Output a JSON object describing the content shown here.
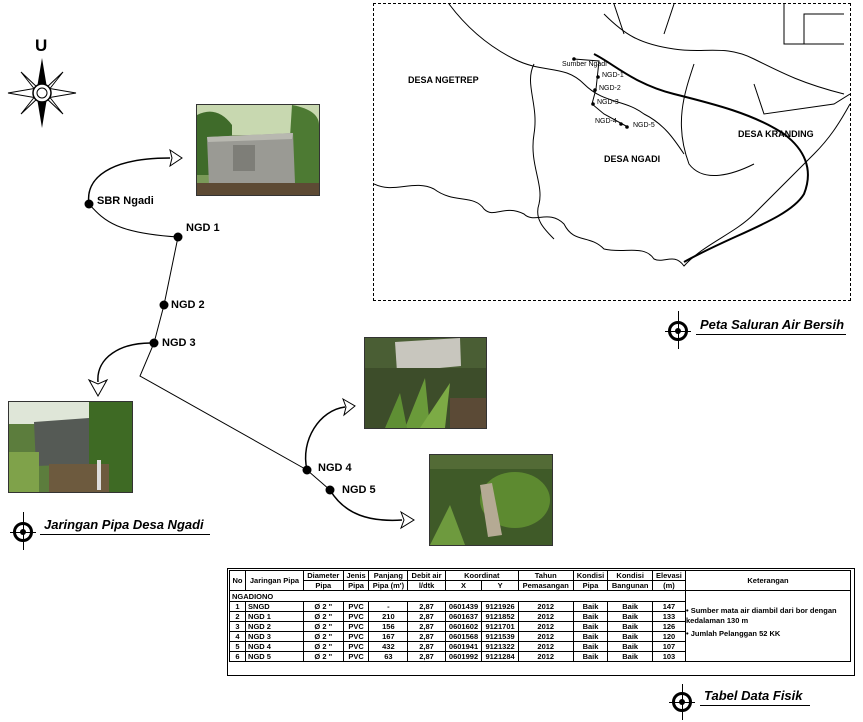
{
  "compass": {
    "north_label": "U"
  },
  "network": {
    "nodes": [
      {
        "id": "sbr",
        "label": "SBR Ngadi"
      },
      {
        "id": "ngd1",
        "label": "NGD 1"
      },
      {
        "id": "ngd2",
        "label": "NGD 2"
      },
      {
        "id": "ngd3",
        "label": "NGD 3"
      },
      {
        "id": "ngd4",
        "label": "NGD 4"
      },
      {
        "id": "ngd5",
        "label": "NGD 5"
      }
    ],
    "caption": "Jaringan Pipa Desa Ngadi"
  },
  "map": {
    "caption": "Peta Saluran Air Bersih",
    "villages": [
      "DESA NGETREP",
      "DESA NGADI",
      "DESA KRANDING"
    ],
    "points": [
      "Sumber Ngadi",
      "NGD-1",
      "NGD-2",
      "NGD-3",
      "NGD-4",
      "NGD-5"
    ]
  },
  "table": {
    "caption": "Tabel Data Fisik",
    "headers": {
      "no": "No",
      "jaringan": "Jaringan Pipa",
      "diameter": [
        "Diameter",
        "Pipa"
      ],
      "jenis": [
        "Jenis",
        "Pipa"
      ],
      "panjang": [
        "Panjang",
        "Pipa (m')"
      ],
      "debit": [
        "Debit air",
        "l/dtk"
      ],
      "koordinat": "Koordinat",
      "x": "X",
      "y": "Y",
      "tahun": [
        "Tahun",
        "Pemasangan"
      ],
      "kondisi_pipa": [
        "Kondisi",
        "Pipa"
      ],
      "kondisi_bangunan": [
        "Kondisi",
        "Bangunan"
      ],
      "elevasi": [
        "Elevasi",
        "(m)"
      ],
      "keterangan": "Keterangan"
    },
    "group": "NGADIONO",
    "rows": [
      [
        "1",
        "SNGD",
        "Ø 2 \"",
        "PVC",
        "-",
        "2,87",
        "0601439",
        "9121926",
        "2012",
        "Baik",
        "Baik",
        "147"
      ],
      [
        "2",
        "NGD 1",
        "Ø 2 \"",
        "PVC",
        "210",
        "2,87",
        "0601637",
        "9121852",
        "2012",
        "Baik",
        "Baik",
        "133"
      ],
      [
        "3",
        "NGD 2",
        "Ø 2 \"",
        "PVC",
        "156",
        "2,87",
        "0601602",
        "9121701",
        "2012",
        "Baik",
        "Baik",
        "126"
      ],
      [
        "4",
        "NGD 3",
        "Ø 2 \"",
        "PVC",
        "167",
        "2,87",
        "0601568",
        "9121539",
        "2012",
        "Baik",
        "Baik",
        "120"
      ],
      [
        "5",
        "NGD 4",
        "Ø 2 \"",
        "PVC",
        "432",
        "2,87",
        "0601941",
        "9121322",
        "2012",
        "Baik",
        "Baik",
        "107"
      ],
      [
        "6",
        "NGD 5",
        "Ø 2 \"",
        "PVC",
        "63",
        "2,87",
        "0601992",
        "9121284",
        "2012",
        "Baik",
        "Baik",
        "103"
      ]
    ],
    "notes": [
      "Sumber mata air diambil dari bor dengan kedalaman 130 m",
      "Jumlah Pelanggan 52 KK"
    ]
  }
}
